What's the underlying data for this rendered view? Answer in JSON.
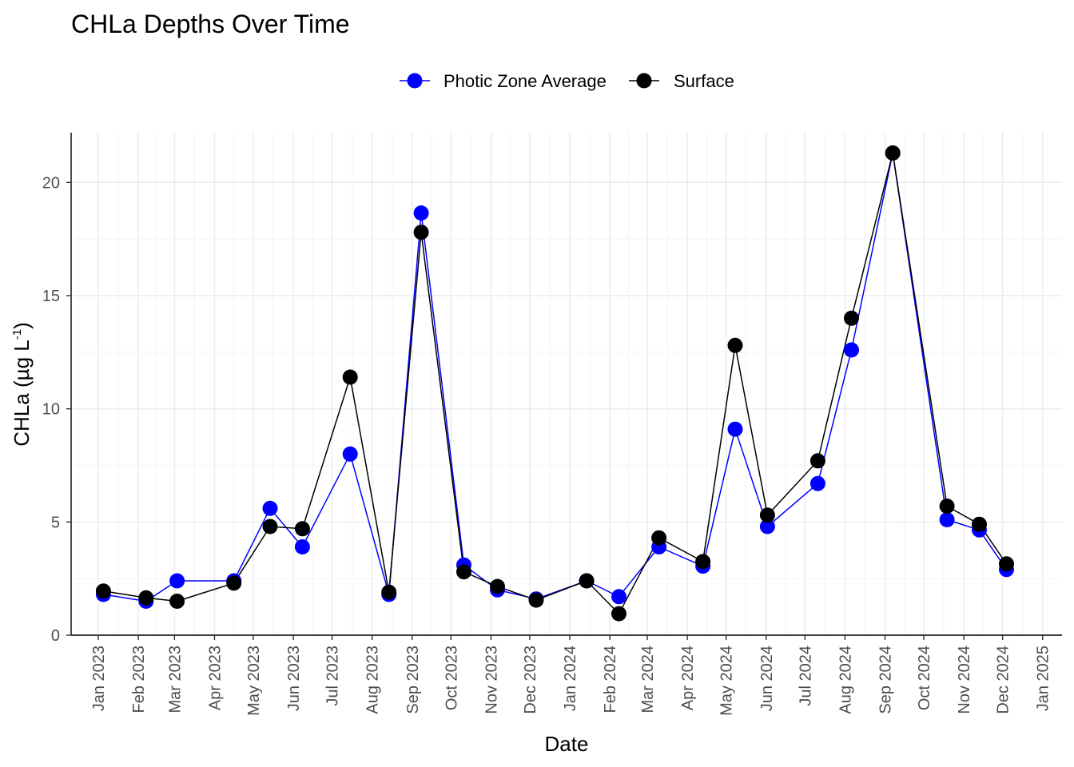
{
  "chart_data": {
    "type": "line",
    "title": "CHLa Depths Over Time",
    "xlabel": "Date",
    "ylabel": {
      "prefix": "CHLa (µg L",
      "superscript": "-1",
      "suffix": ")"
    },
    "ylim": [
      0,
      22.2
    ],
    "y_ticks": [
      "0",
      "5",
      "10",
      "15",
      "20"
    ],
    "xlim": [
      "2022-12-11",
      "2025-01-16"
    ],
    "x_ticks": [
      {
        "date": "2023-01-01",
        "label": "Jan 2023"
      },
      {
        "date": "2023-02-01",
        "label": "Feb 2023"
      },
      {
        "date": "2023-03-01",
        "label": "Mar 2023"
      },
      {
        "date": "2023-04-01",
        "label": "Apr 2023"
      },
      {
        "date": "2023-05-01",
        "label": "May 2023"
      },
      {
        "date": "2023-06-01",
        "label": "Jun 2023"
      },
      {
        "date": "2023-07-01",
        "label": "Jul 2023"
      },
      {
        "date": "2023-08-01",
        "label": "Aug 2023"
      },
      {
        "date": "2023-09-01",
        "label": "Sep 2023"
      },
      {
        "date": "2023-10-01",
        "label": "Oct 2023"
      },
      {
        "date": "2023-11-01",
        "label": "Nov 2023"
      },
      {
        "date": "2023-12-01",
        "label": "Dec 2023"
      },
      {
        "date": "2024-01-01",
        "label": "Jan 2024"
      },
      {
        "date": "2024-02-01",
        "label": "Feb 2024"
      },
      {
        "date": "2024-03-01",
        "label": "Mar 2024"
      },
      {
        "date": "2024-04-01",
        "label": "Apr 2024"
      },
      {
        "date": "2024-05-01",
        "label": "May 2024"
      },
      {
        "date": "2024-06-01",
        "label": "Jun 2024"
      },
      {
        "date": "2024-07-01",
        "label": "Jul 2024"
      },
      {
        "date": "2024-08-01",
        "label": "Aug 2024"
      },
      {
        "date": "2024-09-01",
        "label": "Sep 2024"
      },
      {
        "date": "2024-10-01",
        "label": "Oct 2024"
      },
      {
        "date": "2024-11-01",
        "label": "Nov 2024"
      },
      {
        "date": "2024-12-01",
        "label": "Dec 2024"
      },
      {
        "date": "2025-01-01",
        "label": "Jan 2025"
      }
    ],
    "grid": true,
    "legend_position": "top",
    "series": [
      {
        "name": "Photic Zone Average",
        "color": "#0000ff",
        "points": [
          {
            "x": "2023-01-05",
            "y": 1.8
          },
          {
            "x": "2023-02-07",
            "y": 1.5
          },
          {
            "x": "2023-03-03",
            "y": 2.4
          },
          {
            "x": "2023-04-16",
            "y": 2.4
          },
          {
            "x": "2023-05-14",
            "y": 5.6
          },
          {
            "x": "2023-06-08",
            "y": 3.9
          },
          {
            "x": "2023-07-15",
            "y": 8.0
          },
          {
            "x": "2023-08-14",
            "y": 1.8
          },
          {
            "x": "2023-09-08",
            "y": 18.65
          },
          {
            "x": "2023-10-11",
            "y": 3.1
          },
          {
            "x": "2023-11-06",
            "y": 2.0
          },
          {
            "x": "2023-12-06",
            "y": 1.6
          },
          {
            "x": "2024-01-14",
            "y": 2.4
          },
          {
            "x": "2024-02-08",
            "y": 1.7
          },
          {
            "x": "2024-03-10",
            "y": 3.9
          },
          {
            "x": "2024-04-13",
            "y": 3.05
          },
          {
            "x": "2024-05-08",
            "y": 9.1
          },
          {
            "x": "2024-06-02",
            "y": 4.8
          },
          {
            "x": "2024-07-11",
            "y": 6.7
          },
          {
            "x": "2024-08-06",
            "y": 12.6
          },
          {
            "x": "2024-09-07",
            "y": 21.3
          },
          {
            "x": "2024-10-19",
            "y": 5.1
          },
          {
            "x": "2024-11-13",
            "y": 4.65
          },
          {
            "x": "2024-12-04",
            "y": 2.9
          }
        ]
      },
      {
        "name": "Surface",
        "color": "#000000",
        "points": [
          {
            "x": "2023-01-05",
            "y": 1.95
          },
          {
            "x": "2023-02-07",
            "y": 1.65
          },
          {
            "x": "2023-03-03",
            "y": 1.5
          },
          {
            "x": "2023-04-16",
            "y": 2.3
          },
          {
            "x": "2023-05-14",
            "y": 4.8
          },
          {
            "x": "2023-06-08",
            "y": 4.7
          },
          {
            "x": "2023-07-15",
            "y": 11.4
          },
          {
            "x": "2023-08-14",
            "y": 1.9
          },
          {
            "x": "2023-09-08",
            "y": 17.8
          },
          {
            "x": "2023-10-11",
            "y": 2.8
          },
          {
            "x": "2023-11-06",
            "y": 2.15
          },
          {
            "x": "2023-12-06",
            "y": 1.55
          },
          {
            "x": "2024-01-14",
            "y": 2.4
          },
          {
            "x": "2024-02-08",
            "y": 0.95
          },
          {
            "x": "2024-03-10",
            "y": 4.3
          },
          {
            "x": "2024-04-13",
            "y": 3.25
          },
          {
            "x": "2024-05-08",
            "y": 12.8
          },
          {
            "x": "2024-06-02",
            "y": 5.3
          },
          {
            "x": "2024-07-11",
            "y": 7.7
          },
          {
            "x": "2024-08-06",
            "y": 14.0
          },
          {
            "x": "2024-09-07",
            "y": 21.3
          },
          {
            "x": "2024-10-19",
            "y": 5.7
          },
          {
            "x": "2024-11-13",
            "y": 4.9
          },
          {
            "x": "2024-12-04",
            "y": 3.15
          }
        ]
      }
    ]
  }
}
